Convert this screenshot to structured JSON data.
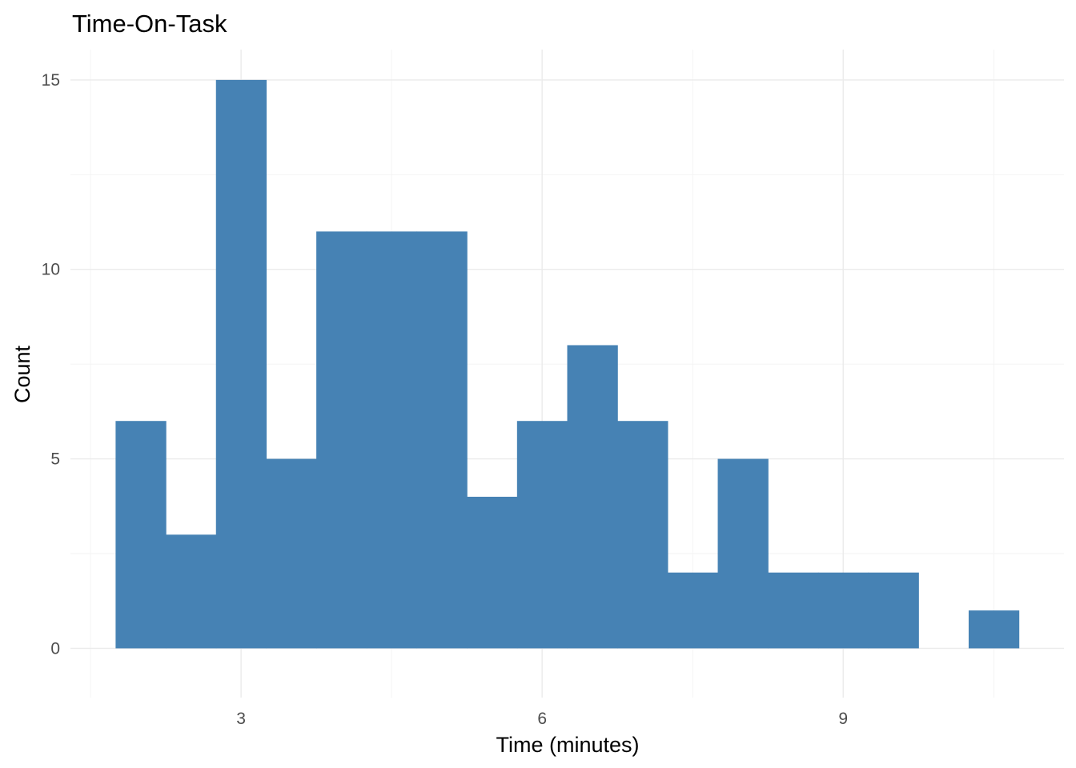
{
  "chart_data": {
    "type": "bar",
    "subtype": "histogram",
    "title": "Time-On-Task",
    "xlabel": "Time (minutes)",
    "ylabel": "Count",
    "bin_width": 0.5,
    "bins": [
      {
        "x0": 1.75,
        "x1": 2.25,
        "count": 6
      },
      {
        "x0": 2.25,
        "x1": 2.75,
        "count": 3
      },
      {
        "x0": 2.75,
        "x1": 3.25,
        "count": 15
      },
      {
        "x0": 3.25,
        "x1": 3.75,
        "count": 5
      },
      {
        "x0": 3.75,
        "x1": 4.25,
        "count": 11
      },
      {
        "x0": 4.25,
        "x1": 4.75,
        "count": 11
      },
      {
        "x0": 4.75,
        "x1": 5.25,
        "count": 11
      },
      {
        "x0": 5.25,
        "x1": 5.75,
        "count": 4
      },
      {
        "x0": 5.75,
        "x1": 6.25,
        "count": 6
      },
      {
        "x0": 6.25,
        "x1": 6.75,
        "count": 8
      },
      {
        "x0": 6.75,
        "x1": 7.25,
        "count": 6
      },
      {
        "x0": 7.25,
        "x1": 7.75,
        "count": 2
      },
      {
        "x0": 7.75,
        "x1": 8.25,
        "count": 5
      },
      {
        "x0": 8.25,
        "x1": 8.75,
        "count": 2
      },
      {
        "x0": 8.75,
        "x1": 9.25,
        "count": 2
      },
      {
        "x0": 9.25,
        "x1": 9.75,
        "count": 2
      },
      {
        "x0": 9.75,
        "x1": 10.25,
        "count": 0
      },
      {
        "x0": 10.25,
        "x1": 10.75,
        "count": 1
      }
    ],
    "xlim": [
      1.3,
      11.2
    ],
    "ylim": [
      -1.3,
      15.8
    ],
    "x_ticks": [
      3,
      6,
      9
    ],
    "x_minor_ticks": [
      1.5,
      4.5,
      7.5,
      10.5
    ],
    "y_ticks": [
      0,
      5,
      10,
      15
    ],
    "y_minor_ticks": [
      2.5,
      7.5,
      12.5
    ],
    "bar_color": "#4682B4",
    "grid": true,
    "legend": "none"
  }
}
